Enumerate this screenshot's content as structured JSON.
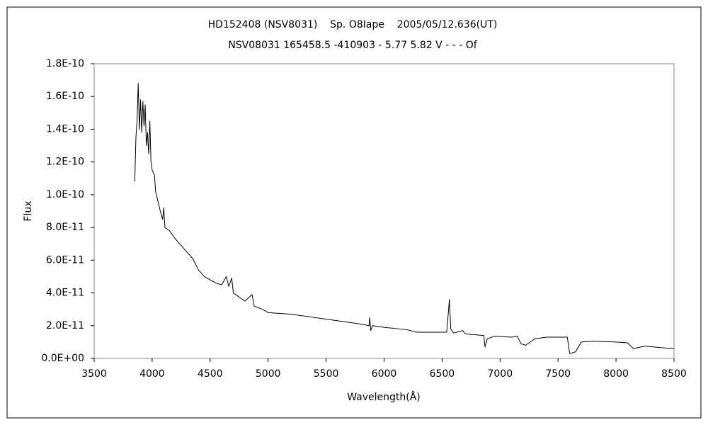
{
  "chart_data": {
    "type": "line",
    "title": "HD152408 (NSV8031)    Sp. O8Iape    2005/05/12.636(UT)",
    "subtitle": "NSV08031 165458.5 -410903 - 5.77 5.82 V - - - Of",
    "xlabel": "Wavelength(Å)",
    "ylabel": "Flux",
    "x": [
      3850,
      3860,
      3870,
      3880,
      3890,
      3900,
      3910,
      3920,
      3930,
      3940,
      3950,
      3960,
      3970,
      3980,
      3990,
      4000,
      4020,
      4030,
      4050,
      4070,
      4090,
      4100,
      4110,
      4150,
      4200,
      4250,
      4300,
      4350,
      4400,
      4450,
      4500,
      4550,
      4600,
      4640,
      4660,
      4686,
      4700,
      4800,
      4861,
      4880,
      4950,
      5000,
      5200,
      5400,
      5600,
      5800,
      5870,
      5876,
      5885,
      5900,
      6000,
      6200,
      6280,
      6400,
      6540,
      6563,
      6575,
      6600,
      6678,
      6700,
      6860,
      6870,
      6890,
      6950,
      7100,
      7150,
      7180,
      7220,
      7300,
      7400,
      7580,
      7600,
      7650,
      7700,
      7800,
      8000,
      8100,
      8150,
      8250,
      8400,
      8500
    ],
    "series": [
      {
        "name": "Flux",
        "color": "#000000",
        "values": [
          1.08e-10,
          1.35e-10,
          1.45e-10,
          1.68e-10,
          1.4e-10,
          1.58e-10,
          1.38e-10,
          1.57e-10,
          1.42e-10,
          1.55e-10,
          1.3e-10,
          1.38e-10,
          1.25e-10,
          1.45e-10,
          1.2e-10,
          1.15e-10,
          1.12e-10,
          1.02e-10,
          9.6e-11,
          9e-11,
          8.5e-11,
          9.2e-11,
          8e-11,
          7.8e-11,
          7.3e-11,
          6.9e-11,
          6.5e-11,
          6.1e-11,
          5.4e-11,
          5e-11,
          4.8e-11,
          4.6e-11,
          4.5e-11,
          5e-11,
          4.4e-11,
          4.9e-11,
          4e-11,
          3.5e-11,
          3.9e-11,
          3.2e-11,
          3e-11,
          2.8e-11,
          2.7e-11,
          2.5e-11,
          2.3e-11,
          2.1e-11,
          2e-11,
          2.5e-11,
          1.7e-11,
          2e-11,
          1.9e-11,
          1.75e-11,
          1.6e-11,
          1.6e-11,
          1.6e-11,
          3.6e-11,
          1.8e-11,
          1.55e-11,
          1.7e-11,
          1.5e-11,
          1.4e-11,
          7e-12,
          1.2e-11,
          1.35e-11,
          1.3e-11,
          1.35e-11,
          9e-12,
          8e-12,
          1.2e-11,
          1.3e-11,
          1.3e-11,
          3e-12,
          4e-12,
          1e-11,
          1.05e-11,
          1e-11,
          9.5e-12,
          6e-12,
          7.5e-12,
          6.5e-12,
          6e-12
        ]
      }
    ],
    "xlim": [
      3500,
      8500
    ],
    "xticks": [
      3500,
      4000,
      4500,
      5000,
      5500,
      6000,
      6500,
      7000,
      7500,
      8000,
      8500
    ],
    "ylim": [
      0,
      1.8e-10
    ],
    "yticks": [
      {
        "value": 0,
        "label": "0.0E+00"
      },
      {
        "value": 2e-11,
        "label": "2.0E-11"
      },
      {
        "value": 4e-11,
        "label": "4.0E-11"
      },
      {
        "value": 6e-11,
        "label": "6.0E-11"
      },
      {
        "value": 8e-11,
        "label": "8.0E-11"
      },
      {
        "value": 1e-10,
        "label": "1.0E-10"
      },
      {
        "value": 1.2e-10,
        "label": "1.2E-10"
      },
      {
        "value": 1.4e-10,
        "label": "1.4E-10"
      },
      {
        "value": 1.6e-10,
        "label": "1.6E-10"
      },
      {
        "value": 1.8e-10,
        "label": "1.8E-10"
      }
    ],
    "grid": false
  }
}
